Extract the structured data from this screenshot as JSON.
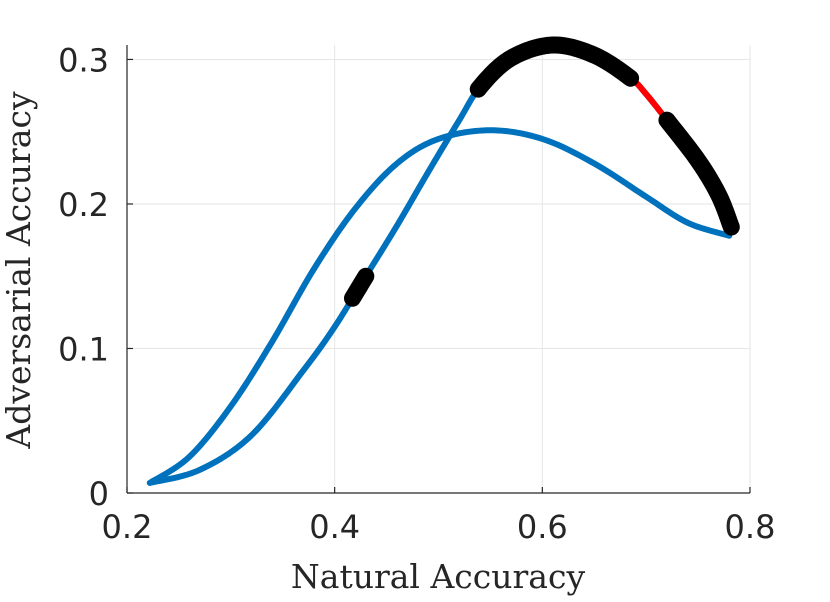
{
  "chart_data": {
    "type": "line",
    "title": "",
    "xlabel": "Natural Accuracy",
    "ylabel": "Adversarial Accuracy",
    "xlim": [
      0.2,
      0.8
    ],
    "ylim": [
      0,
      0.31
    ],
    "xticks": [
      0.2,
      0.4,
      0.6,
      0.8
    ],
    "xtick_labels": [
      "0.2",
      "0.4",
      "0.6",
      "0.8"
    ],
    "yticks": [
      0,
      0.1,
      0.2,
      0.3
    ],
    "ytick_labels": [
      "0",
      "0.1",
      "0.2",
      "0.3"
    ],
    "grid": true,
    "legend": "none",
    "colors": {
      "curve": "#0072BD",
      "highlight": "#FF0000",
      "markers": "#000000"
    },
    "series": [
      {
        "points": [
          [
            0.222,
            0.007
          ],
          [
            0.26,
            0.025
          ],
          [
            0.3,
            0.06
          ],
          [
            0.34,
            0.105
          ],
          [
            0.38,
            0.155
          ],
          [
            0.42,
            0.197
          ],
          [
            0.46,
            0.228
          ],
          [
            0.5,
            0.245
          ],
          [
            0.55,
            0.251
          ],
          [
            0.6,
            0.245
          ],
          [
            0.65,
            0.228
          ],
          [
            0.7,
            0.205
          ],
          [
            0.74,
            0.187
          ],
          [
            0.78,
            0.178
          ]
        ]
      },
      {
        "points": [
          [
            0.222,
            0.007
          ],
          [
            0.27,
            0.016
          ],
          [
            0.32,
            0.04
          ],
          [
            0.37,
            0.085
          ],
          [
            0.4,
            0.115
          ],
          [
            0.43,
            0.15
          ],
          [
            0.46,
            0.185
          ],
          [
            0.49,
            0.222
          ],
          [
            0.52,
            0.258
          ],
          [
            0.54,
            0.281
          ],
          [
            0.57,
            0.301
          ],
          [
            0.61,
            0.31
          ],
          [
            0.65,
            0.303
          ],
          [
            0.685,
            0.287
          ],
          [
            0.7,
            0.276
          ],
          [
            0.72,
            0.258
          ],
          [
            0.75,
            0.23
          ],
          [
            0.77,
            0.206
          ],
          [
            0.782,
            0.184
          ]
        ]
      }
    ],
    "highlight_segment": {
      "x_range": [
        0.685,
        0.72
      ]
    },
    "marker_segments": [
      {
        "x_range": [
          0.417,
          0.43
        ]
      },
      {
        "x_range": [
          0.538,
          0.685
        ]
      },
      {
        "x_range": [
          0.72,
          0.782
        ]
      }
    ]
  }
}
